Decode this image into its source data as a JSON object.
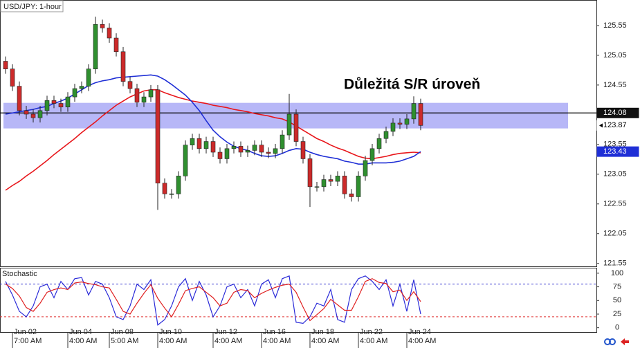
{
  "chart_data": [
    {
      "type": "candlestick",
      "title": "USD/JPY: 1-hour",
      "annotation": "Důležitá S/R úroveň",
      "categories": [
        null,
        "Jun 02\n7:00 AM",
        null,
        null,
        null,
        null,
        null,
        null,
        null,
        "Jun 04\n4:00 AM",
        null,
        null,
        null,
        null,
        null,
        "Jun 08\n5:00 AM",
        null,
        null,
        null,
        null,
        null,
        null,
        "Jun 10\n4:00 AM",
        null,
        null,
        null,
        null,
        null,
        null,
        null,
        "Jun 12\n4:00 AM",
        null,
        null,
        null,
        null,
        null,
        null,
        "Jun 16\n4:00 AM",
        null,
        null,
        null,
        null,
        null,
        null,
        "Jun 18\n4:00 AM",
        null,
        null,
        null,
        null,
        null,
        null,
        "Jun 22\n4:00 AM",
        null,
        null,
        null,
        null,
        null,
        null,
        "Jun 24\n4:00 AM",
        null,
        null
      ],
      "open": [
        124.95,
        124.82,
        124.53,
        124.12,
        124.06,
        124.0,
        124.12,
        124.29,
        124.24,
        124.18,
        124.35,
        124.49,
        124.53,
        124.82,
        125.57,
        125.51,
        125.34,
        125.11,
        124.61,
        124.49,
        124.26,
        124.35,
        124.47,
        122.9,
        122.72,
        122.72,
        123.02,
        123.54,
        123.65,
        123.48,
        123.6,
        123.42,
        123.31,
        123.48,
        123.52,
        123.42,
        123.45,
        123.54,
        123.42,
        123.4,
        123.48,
        123.71,
        124.06,
        123.6,
        123.31,
        122.84,
        122.84,
        122.96,
        122.93,
        123.02,
        122.72,
        122.67,
        123.02,
        123.28,
        123.48,
        123.65,
        123.77,
        123.91,
        123.89,
        123.98,
        124.24
      ],
      "high": [
        125.03,
        124.9,
        124.61,
        124.2,
        124.14,
        124.2,
        124.37,
        124.37,
        124.32,
        124.43,
        124.57,
        124.61,
        124.9,
        125.7,
        125.65,
        125.59,
        125.42,
        125.19,
        124.69,
        124.57,
        124.43,
        124.55,
        124.55,
        122.98,
        122.8,
        123.1,
        123.62,
        123.73,
        123.73,
        123.68,
        123.68,
        123.5,
        123.56,
        123.6,
        123.6,
        123.53,
        123.62,
        123.62,
        123.5,
        123.56,
        123.79,
        124.4,
        124.14,
        123.68,
        123.39,
        122.92,
        123.04,
        123.04,
        123.1,
        123.1,
        122.8,
        123.1,
        123.36,
        123.56,
        123.73,
        123.85,
        123.99,
        123.99,
        124.06,
        124.36,
        124.32
      ],
      "low": [
        124.74,
        124.45,
        124.04,
        123.98,
        123.92,
        123.92,
        124.04,
        124.16,
        124.1,
        124.1,
        124.27,
        124.41,
        124.45,
        124.74,
        125.43,
        125.26,
        125.03,
        124.53,
        124.41,
        124.18,
        124.18,
        124.27,
        122.45,
        122.64,
        122.64,
        122.64,
        122.94,
        123.46,
        123.4,
        123.4,
        123.34,
        123.23,
        123.23,
        123.4,
        123.34,
        123.34,
        123.37,
        123.34,
        123.32,
        123.32,
        123.4,
        123.63,
        123.52,
        123.23,
        122.5,
        122.76,
        122.76,
        122.85,
        122.85,
        122.64,
        122.59,
        122.59,
        122.94,
        123.2,
        123.4,
        123.57,
        123.69,
        123.81,
        123.81,
        123.9,
        123.79
      ],
      "close": [
        124.82,
        124.53,
        124.12,
        124.06,
        124.0,
        124.12,
        124.29,
        124.24,
        124.18,
        124.35,
        124.49,
        124.53,
        124.82,
        125.57,
        125.51,
        125.34,
        125.11,
        124.61,
        124.49,
        124.26,
        124.35,
        124.47,
        122.9,
        122.72,
        122.72,
        123.02,
        123.54,
        123.65,
        123.48,
        123.6,
        123.42,
        123.31,
        123.48,
        123.52,
        123.42,
        123.45,
        123.54,
        123.42,
        123.4,
        123.48,
        123.71,
        124.06,
        123.6,
        123.31,
        122.84,
        122.84,
        122.96,
        122.93,
        123.02,
        122.72,
        122.67,
        123.02,
        123.28,
        123.48,
        123.65,
        123.77,
        123.91,
        123.89,
        123.98,
        124.24,
        123.87
      ],
      "up_color": "#2f8f2f",
      "down_color": "#cc2a2a",
      "series": [
        {
          "color": "#e8161b",
          "values": [
            122.78,
            122.86,
            122.93,
            123.02,
            123.1,
            123.19,
            123.28,
            123.38,
            123.47,
            123.56,
            123.65,
            123.75,
            123.84,
            123.93,
            124.03,
            124.12,
            124.21,
            124.28,
            124.35,
            124.4,
            124.45,
            124.47,
            124.47,
            124.42,
            124.38,
            124.34,
            124.31,
            124.28,
            124.26,
            124.24,
            124.21,
            124.19,
            124.17,
            124.14,
            124.12,
            124.1,
            124.07,
            124.05,
            124.03,
            124.0,
            123.98,
            123.93,
            123.86,
            123.79,
            123.72,
            123.65,
            123.6,
            123.54,
            123.49,
            123.45,
            123.4,
            123.35,
            123.32,
            123.31,
            123.33,
            123.35,
            123.38,
            123.4,
            123.41,
            123.42,
            123.41
          ]
        },
        {
          "color": "#1f2fd6",
          "values": [
            124.06,
            124.08,
            124.1,
            124.12,
            124.14,
            124.17,
            124.19,
            124.24,
            124.28,
            124.33,
            124.4,
            124.47,
            124.54,
            124.59,
            124.62,
            124.64,
            124.67,
            124.68,
            124.69,
            124.7,
            124.71,
            124.72,
            124.7,
            124.64,
            124.56,
            124.47,
            124.38,
            124.26,
            124.12,
            123.95,
            123.79,
            123.68,
            123.59,
            123.52,
            123.48,
            123.45,
            123.4,
            123.36,
            123.35,
            123.36,
            123.4,
            123.45,
            123.48,
            123.47,
            123.42,
            123.38,
            123.35,
            123.33,
            123.31,
            123.27,
            123.25,
            123.22,
            123.22,
            123.24,
            123.24,
            123.24,
            123.25,
            123.27,
            123.31,
            123.35,
            123.43
          ]
        }
      ],
      "sr_line": 124.08,
      "sr_zone": [
        123.82,
        124.25
      ],
      "zone_color": "#7b7bf0",
      "ylim": [
        121.5,
        125.98
      ],
      "yticks": [
        121.55,
        122.05,
        122.55,
        123.05,
        123.55,
        124.05,
        124.55,
        125.05,
        125.55
      ]
    },
    {
      "type": "line",
      "title": "Stochastic",
      "series": [
        {
          "color": "#2a2ad8",
          "values": [
            85,
            60,
            30,
            20,
            40,
            75,
            80,
            55,
            85,
            70,
            90,
            92,
            60,
            85,
            80,
            55,
            20,
            15,
            40,
            80,
            70,
            88,
            5,
            15,
            40,
            75,
            90,
            50,
            85,
            60,
            20,
            40,
            75,
            80,
            55,
            70,
            40,
            80,
            88,
            55,
            90,
            95,
            10,
            8,
            20,
            45,
            40,
            70,
            15,
            10,
            70,
            90,
            95,
            85,
            70,
            88,
            40,
            80,
            30,
            88,
            25
          ]
        },
        {
          "color": "#e02020",
          "values": [
            80,
            72,
            58,
            37,
            30,
            45,
            65,
            70,
            73,
            70,
            82,
            84,
            81,
            79,
            75,
            73,
            52,
            30,
            25,
            45,
            63,
            79,
            54,
            36,
            20,
            43,
            68,
            72,
            75,
            65,
            55,
            40,
            45,
            65,
            70,
            68,
            55,
            63,
            69,
            74,
            78,
            80,
            65,
            38,
            13,
            24,
            35,
            52,
            42,
            32,
            32,
            57,
            85,
            90,
            83,
            81,
            66,
            69,
            50,
            66,
            48
          ]
        }
      ],
      "levels": [
        {
          "value": 80,
          "color": "#3a3ad0"
        },
        {
          "value": 20,
          "color": "#e03030"
        }
      ],
      "ylim": [
        -8,
        110
      ],
      "yticks": [
        0,
        25,
        50,
        75,
        100
      ]
    }
  ]
}
